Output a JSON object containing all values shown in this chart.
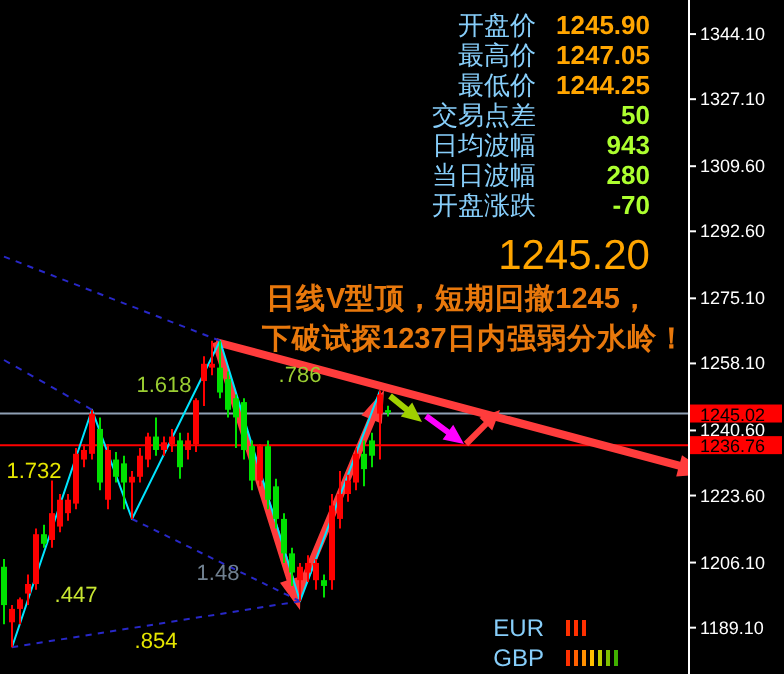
{
  "chart_data": {
    "type": "candlestick",
    "categories": [
      null,
      null,
      null,
      null,
      null,
      null,
      null,
      null,
      null,
      null,
      null,
      null,
      null,
      null,
      null,
      null,
      null,
      null,
      null,
      null,
      null,
      null,
      null,
      null,
      null,
      null,
      null,
      null,
      null,
      null,
      null,
      null,
      null,
      null,
      null,
      null,
      null,
      null,
      null,
      null,
      null,
      null,
      null,
      null,
      null,
      null,
      null,
      null,
      null,
      null,
      null,
      null,
      null,
      null,
      null,
      null,
      null,
      null,
      null,
      null,
      null,
      null,
      null,
      null,
      null,
      null,
      null,
      null,
      null,
      null,
      null,
      null,
      null,
      null,
      null,
      null,
      null,
      null,
      null,
      null,
      null,
      null,
      null,
      null,
      null,
      null
    ],
    "ohlc": [
      [
        1205,
        1207,
        1190,
        1195
      ],
      [
        1190.5,
        1195,
        1184,
        1194
      ],
      [
        1194,
        1197,
        1190,
        1196.5
      ],
      [
        1198,
        1203,
        1195,
        1200.5
      ],
      [
        1200.5,
        1215,
        1199,
        1213.5
      ],
      [
        1213.5,
        1216,
        1210,
        1211
      ],
      [
        1212,
        1227.5,
        1210,
        1219
      ],
      [
        1215.5,
        1224,
        1214,
        1222.5
      ],
      [
        1219,
        1224,
        1217,
        1222.5
      ],
      [
        1221.5,
        1236,
        1220,
        1234.5
      ],
      [
        1233,
        1237,
        1231,
        1235.5
      ],
      [
        1234.5,
        1246,
        1233,
        1245
      ],
      [
        1241,
        1244,
        1225,
        1227
      ],
      [
        1222.5,
        1237,
        1220,
        1235.5
      ],
      [
        1233,
        1235,
        1227,
        1228.5
      ],
      [
        1232,
        1234,
        1220,
        1227
      ],
      [
        1227,
        1230,
        1217.5,
        1228.5
      ],
      [
        1228.5,
        1236,
        1227,
        1234
      ],
      [
        1233,
        1240,
        1231,
        1239
      ],
      [
        1239,
        1244,
        1234,
        1235.5
      ],
      [
        1235.5,
        1239,
        1234,
        1237.5
      ],
      [
        1237,
        1241,
        1235,
        1239
      ],
      [
        1238,
        1240,
        1228,
        1231
      ],
      [
        1235.5,
        1240,
        1233,
        1238
      ],
      [
        1237,
        1249,
        1235,
        1248.5
      ],
      [
        1253.5,
        1260,
        1247,
        1258
      ],
      [
        1257,
        1264,
        1255,
        1258
      ],
      [
        1257,
        1264,
        1249,
        1250.5
      ],
      [
        1254,
        1256,
        1244,
        1246
      ],
      [
        1249,
        1250,
        1236,
        1244
      ],
      [
        1248,
        1249,
        1233,
        1235.5
      ],
      [
        1236.5,
        1238,
        1225,
        1227.5
      ],
      [
        1227.5,
        1237,
        1226,
        1236.5
      ],
      [
        1236.5,
        1238,
        1220,
        1222.5
      ],
      [
        1226,
        1228,
        1215,
        1217.5
      ],
      [
        1217.5,
        1219,
        1206,
        1208.5
      ],
      [
        1208.5,
        1210,
        1200,
        1203.5
      ],
      [
        1201.5,
        1206,
        1196,
        1205
      ],
      [
        1203.5,
        1208,
        1201,
        1206
      ],
      [
        1201.5,
        1207,
        1199,
        1206
      ],
      [
        1201.5,
        1203,
        1197,
        1200
      ],
      [
        1201.5,
        1224,
        1199,
        1221
      ],
      [
        1217.5,
        1230,
        1215,
        1224
      ],
      [
        1224,
        1229,
        1222,
        1227.5
      ],
      [
        1227,
        1236,
        1225,
        1234.5
      ],
      [
        1234.5,
        1238,
        1226,
        1230.5
      ],
      [
        1238,
        1240,
        1231,
        1234
      ],
      [
        1245,
        1251,
        1233,
        1250
      ],
      [
        1245.9,
        1247.05,
        1244.25,
        1245.2
      ],
      null,
      null,
      null,
      null,
      null,
      null,
      null,
      null,
      null,
      null,
      null,
      null,
      null,
      null,
      null,
      null,
      null,
      null,
      null,
      null,
      null,
      null,
      null,
      null,
      null,
      null,
      null,
      null,
      null,
      null,
      null,
      null,
      null,
      null,
      null,
      null,
      null
    ],
    "colors": [
      "#00e000",
      "#ff0000",
      "#ff0000",
      "#ff0000",
      "#ff0000",
      "#00e000",
      "#ff0000",
      "#ff0000",
      "#ff0000",
      "#ff0000",
      "#ff0000",
      "#ff0000",
      "#00e000",
      "#ff0000",
      "#00e000",
      "#00e000",
      "#ff0000",
      "#ff0000",
      "#ff0000",
      "#00e000",
      "#ff0000",
      "#ff0000",
      "#00e000",
      "#ff0000",
      "#ff0000",
      "#ff0000",
      "#ff0000",
      "#00e000",
      "#00e000",
      "#00e000",
      "#00e000",
      "#00e000",
      "#ff0000",
      "#00e000",
      "#00e000",
      "#00e000",
      "#00e000",
      "#ff0000",
      "#ff0000",
      "#ff0000",
      "#00e000",
      "#ff0000",
      "#ff0000",
      "#ff0000",
      "#ff0000",
      "#00e000",
      "#00e000",
      "#ff0000",
      "#00e000",
      null,
      null,
      null,
      null,
      null,
      null,
      null,
      null,
      null,
      null,
      null,
      null,
      null,
      null,
      null,
      null,
      null,
      null,
      null,
      null,
      null,
      null,
      null,
      null,
      null,
      null,
      null,
      null,
      null,
      null,
      null,
      null,
      null,
      null,
      null,
      null,
      null
    ],
    "series": [
      {
        "type": "line",
        "color": "#00e5ff",
        "line_style": "solid",
        "values": [
          null,
          1184,
          null,
          null,
          null,
          null,
          null,
          null,
          null,
          null,
          null,
          1246,
          null,
          null,
          null,
          null,
          1217.5,
          null,
          null,
          null,
          null,
          null,
          null,
          null,
          null,
          null,
          null,
          1264,
          null,
          null,
          null,
          null,
          null,
          null,
          null,
          null,
          null,
          1196,
          null,
          null,
          null,
          null,
          null,
          null,
          null,
          null,
          null,
          1251,
          null,
          null,
          null,
          null,
          null,
          null,
          null,
          null,
          null,
          null,
          null,
          null,
          null,
          null,
          null,
          null,
          null,
          null,
          null,
          null,
          null,
          null,
          null,
          null,
          null,
          null,
          null,
          null,
          null,
          null,
          null,
          null,
          null,
          null,
          null,
          null,
          null,
          null
        ]
      },
      {
        "type": "line",
        "color": "#2828c8",
        "line_style": "dashed",
        "values": [
          null,
          1184,
          null,
          null,
          null,
          null,
          null,
          null,
          null,
          null,
          null,
          null,
          null,
          null,
          null,
          null,
          null,
          null,
          null,
          null,
          null,
          null,
          null,
          null,
          null,
          null,
          null,
          null,
          null,
          null,
          null,
          null,
          null,
          null,
          null,
          null,
          null,
          1196,
          null,
          null,
          null,
          null,
          null,
          null,
          null,
          null,
          null,
          null,
          null,
          null,
          null,
          null,
          null,
          null,
          null,
          null,
          null,
          null,
          null,
          null,
          null,
          null,
          null,
          null,
          null,
          null,
          null,
          null,
          null,
          null,
          null,
          null,
          null,
          null,
          null,
          null,
          null,
          null,
          null,
          null,
          null,
          null,
          null,
          null,
          null,
          null
        ]
      },
      {
        "type": "line",
        "color": "#2828c8",
        "line_style": "dashed",
        "values": [
          null,
          null,
          null,
          null,
          null,
          null,
          null,
          null,
          null,
          null,
          null,
          null,
          null,
          null,
          null,
          null,
          1217.5,
          null,
          null,
          null,
          null,
          null,
          null,
          null,
          null,
          null,
          null,
          null,
          null,
          null,
          null,
          null,
          null,
          null,
          null,
          null,
          null,
          1196,
          null,
          null,
          null,
          null,
          null,
          null,
          null,
          null,
          null,
          null,
          null,
          null,
          null,
          null,
          null,
          null,
          null,
          null,
          null,
          null,
          null,
          null,
          null,
          null,
          null,
          null,
          null,
          null,
          null,
          null,
          null,
          null,
          null,
          null,
          null,
          null,
          null,
          null,
          null,
          null,
          null,
          null,
          null,
          null,
          null,
          null,
          null,
          null
        ]
      },
      {
        "type": "line",
        "color": "#2828c8",
        "line_style": "dashed",
        "values": [
          1286,
          null,
          null,
          null,
          null,
          null,
          null,
          null,
          null,
          null,
          null,
          null,
          null,
          null,
          null,
          null,
          null,
          null,
          null,
          null,
          null,
          null,
          null,
          null,
          null,
          null,
          null,
          1264,
          null,
          null,
          null,
          null,
          null,
          null,
          null,
          null,
          null,
          null,
          null,
          null,
          null,
          null,
          null,
          null,
          null,
          null,
          null,
          null,
          null,
          null,
          null,
          null,
          null,
          null,
          null,
          null,
          null,
          null,
          null,
          null,
          null,
          null,
          null,
          null,
          null,
          null,
          null,
          null,
          null,
          null,
          null,
          null,
          null,
          null,
          null,
          null,
          null,
          null,
          null,
          null,
          null,
          null,
          null,
          null,
          null,
          null
        ]
      },
      {
        "type": "line",
        "color": "#2828c8",
        "line_style": "dashed",
        "values": [
          1259,
          null,
          null,
          null,
          null,
          null,
          null,
          null,
          null,
          null,
          null,
          1246,
          null,
          null,
          null,
          null,
          null,
          null,
          null,
          null,
          null,
          null,
          null,
          null,
          null,
          null,
          null,
          null,
          null,
          null,
          null,
          null,
          null,
          null,
          null,
          null,
          null,
          null,
          null,
          null,
          null,
          null,
          null,
          null,
          null,
          null,
          null,
          null,
          null,
          null,
          null,
          null,
          null,
          null,
          null,
          null,
          null,
          null,
          null,
          null,
          null,
          null,
          null,
          null,
          null,
          null,
          null,
          null,
          null,
          null,
          null,
          null,
          null,
          null,
          null,
          null,
          null,
          null,
          null,
          null,
          null,
          null,
          null,
          null,
          null,
          null
        ]
      }
    ],
    "ylim": [
      1177,
      1353
    ],
    "yticks": [
      {
        "value": 1344.1,
        "label": "1344.10"
      },
      {
        "value": 1327.1,
        "label": "1327.10"
      },
      {
        "value": 1309.6,
        "label": "1309.60"
      },
      {
        "value": 1292.6,
        "label": "1292.60"
      },
      {
        "value": 1275.1,
        "label": "1275.10"
      },
      {
        "value": 1258.1,
        "label": "1258.10"
      },
      {
        "value": 1240.6,
        "label": "1240.60"
      },
      {
        "value": 1223.6,
        "label": "1223.60"
      },
      {
        "value": 1206.1,
        "label": "1206.10"
      },
      {
        "value": 1189.1,
        "label": "1189.10"
      }
    ],
    "tick_labels": "y",
    "ref_lines": [
      {
        "axis": "y",
        "value": 1245.02,
        "label": "1245.02",
        "color": "#8fa0b4"
      },
      {
        "axis": "y",
        "value": 1236.76,
        "label": "1236.76",
        "color": "#ff0000"
      }
    ],
    "annotations": [
      "开盘价",
      "1245.90",
      "最高价",
      "1247.05",
      "最低价",
      "1244.25",
      "交易点差",
      "50",
      "日均波幅",
      "943",
      "当日波幅",
      "280",
      "开盘涨跌",
      "-70",
      "1245.20",
      "日线V型顶，短期回撤1245，",
      "下破试探1237日内强弱分水岭！",
      "1.618",
      ".786",
      "1.732",
      ".447",
      "1.48",
      ".854",
      "EUR",
      "GBP"
    ]
  }
}
